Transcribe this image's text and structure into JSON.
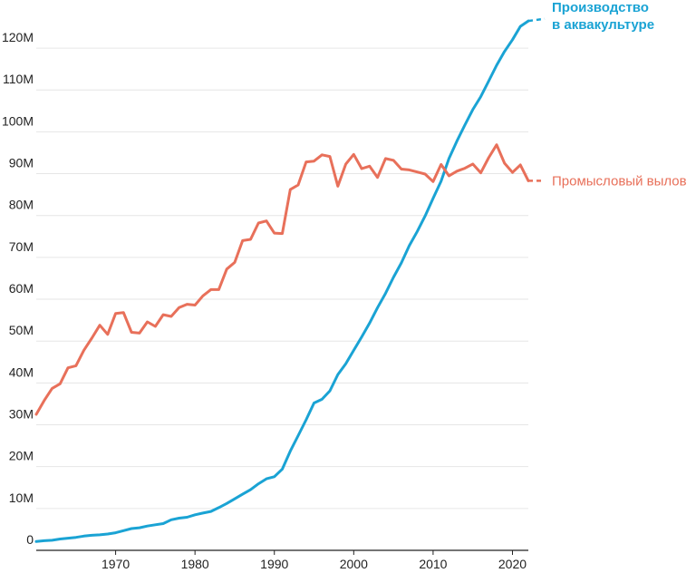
{
  "chart_data": {
    "type": "line",
    "ylim": [
      0,
      125
    ],
    "xlim": [
      1960,
      2022
    ],
    "grid": "horizontal",
    "y_ticks": [
      {
        "value": 0,
        "label": "0"
      },
      {
        "value": 10,
        "label": "10M"
      },
      {
        "value": 20,
        "label": "20M"
      },
      {
        "value": 30,
        "label": "30M"
      },
      {
        "value": 40,
        "label": "40M"
      },
      {
        "value": 50,
        "label": "50M"
      },
      {
        "value": 60,
        "label": "60M"
      },
      {
        "value": 70,
        "label": "70M"
      },
      {
        "value": 80,
        "label": "80M"
      },
      {
        "value": 90,
        "label": "90M"
      },
      {
        "value": 100,
        "label": "100M"
      },
      {
        "value": 110,
        "label": "110M"
      },
      {
        "value": 120,
        "label": "120M"
      }
    ],
    "x_ticks": [
      {
        "value": 1970,
        "label": "1970"
      },
      {
        "value": 1980,
        "label": "1980"
      },
      {
        "value": 1990,
        "label": "1990"
      },
      {
        "value": 2000,
        "label": "2000"
      },
      {
        "value": 2010,
        "label": "2010"
      },
      {
        "value": 2020,
        "label": "2020"
      }
    ],
    "x": [
      1960,
      1961,
      1962,
      1963,
      1964,
      1965,
      1966,
      1967,
      1968,
      1969,
      1970,
      1971,
      1972,
      1973,
      1974,
      1975,
      1976,
      1977,
      1978,
      1979,
      1980,
      1981,
      1982,
      1983,
      1984,
      1985,
      1986,
      1987,
      1988,
      1989,
      1990,
      1991,
      1992,
      1993,
      1994,
      1995,
      1996,
      1997,
      1998,
      1999,
      2000,
      2001,
      2002,
      2003,
      2004,
      2005,
      2006,
      2007,
      2008,
      2009,
      2010,
      2011,
      2012,
      2013,
      2014,
      2015,
      2016,
      2017,
      2018,
      2019,
      2020,
      2021,
      2022
    ],
    "series": [
      {
        "name": "Производство в аквакультуре",
        "label_lines": [
          "Производство",
          "в аквакультуре"
        ],
        "color": "#1aa3d4",
        "values": [
          2.1,
          2.3,
          2.4,
          2.7,
          2.9,
          3.1,
          3.4,
          3.6,
          3.7,
          3.9,
          4.2,
          4.7,
          5.2,
          5.4,
          5.8,
          6.1,
          6.4,
          7.3,
          7.7,
          7.9,
          8.5,
          8.9,
          9.3,
          10.2,
          11.2,
          12.3,
          13.4,
          14.5,
          15.9,
          17.1,
          17.6,
          19.4,
          23.7,
          27.4,
          31.2,
          35.2,
          36.1,
          38.1,
          42.0,
          44.6,
          47.8,
          51.0,
          54.3,
          58.0,
          61.4,
          65.2,
          68.7,
          72.8,
          76.2,
          79.9,
          84.1,
          88.2,
          93.6,
          97.8,
          101.6,
          105.3,
          108.4,
          112.1,
          115.9,
          119.2,
          122.0,
          125.2,
          126.5
        ],
        "projection_to": 127
      },
      {
        "name": "Промысловый вылов",
        "label_lines": [
          "Промысловый вылов"
        ],
        "color": "#e8705a",
        "values": [
          32.5,
          35.8,
          38.7,
          39.8,
          43.6,
          44.1,
          47.8,
          50.7,
          53.8,
          51.6,
          56.6,
          56.8,
          52.1,
          51.9,
          54.6,
          53.5,
          56.3,
          55.9,
          58.0,
          58.8,
          58.6,
          60.8,
          62.3,
          62.3,
          67.2,
          68.8,
          74.0,
          74.3,
          78.2,
          78.7,
          75.8,
          75.7,
          86.2,
          87.3,
          92.8,
          93.0,
          94.5,
          94.1,
          87.0,
          92.3,
          94.6,
          91.2,
          91.8,
          89.1,
          93.6,
          93.2,
          91.1,
          90.9,
          90.4,
          89.9,
          88.1,
          92.2,
          89.5,
          90.6,
          91.3,
          92.3,
          90.2,
          93.8,
          96.9,
          92.5,
          90.3,
          92.1,
          88.3
        ],
        "projection_to": 88.3
      }
    ]
  }
}
